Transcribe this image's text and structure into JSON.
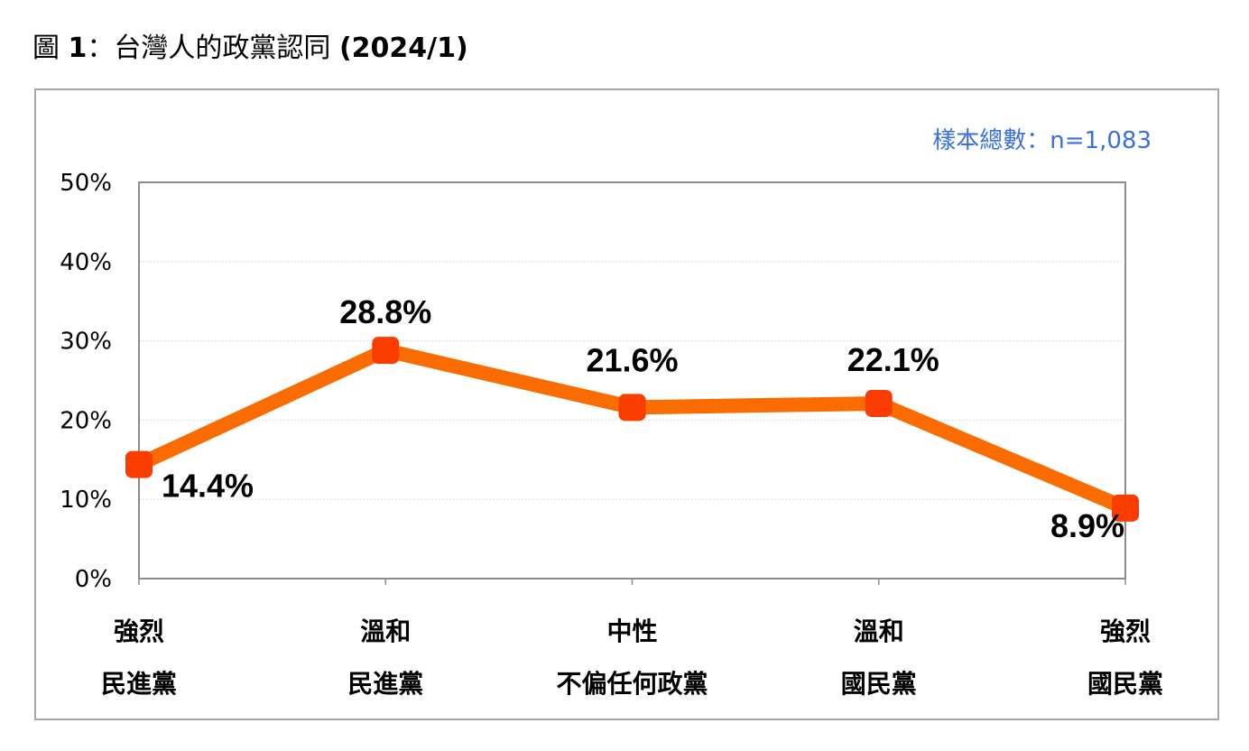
{
  "figure": {
    "title_prefix": "圖",
    "title_number": "1",
    "title_separator": "：",
    "title_text": "台灣人的政黨認同",
    "title_date": "(2024/1)",
    "sample_note": "樣本總數：n=1,083"
  },
  "colors": {
    "line": "#fb6c00",
    "marker": "#fb3c00",
    "note": "#3b6fe0",
    "gridline": "#d9d9d9",
    "plot_border": "#8c8c8c"
  },
  "chart_data": {
    "type": "line",
    "title": "台灣人的政黨認同",
    "categories": [
      [
        "強烈",
        "民進黨"
      ],
      [
        "溫和",
        "民進黨"
      ],
      [
        "中性",
        "不偏任何政黨"
      ],
      [
        "溫和",
        "國民黨"
      ],
      [
        "強烈",
        "國民黨"
      ]
    ],
    "values": [
      14.4,
      28.8,
      21.6,
      22.1,
      8.9
    ],
    "data_labels": [
      "14.4%",
      "28.8%",
      "21.6%",
      "22.1%",
      "8.9%"
    ],
    "yticks": [
      "0%",
      "10%",
      "20%",
      "30%",
      "40%",
      "50%"
    ],
    "ylim": [
      0,
      50
    ],
    "ytick_step": 10,
    "grid": true,
    "legend": "none"
  }
}
